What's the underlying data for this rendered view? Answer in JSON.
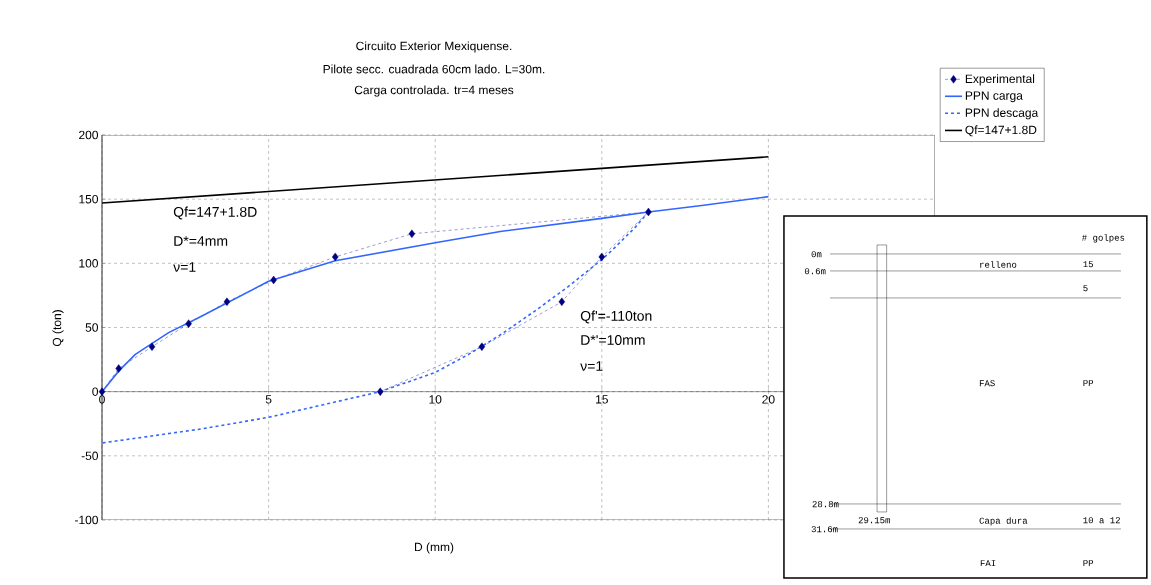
{
  "chart_data": {
    "type": "line",
    "title": "Circuito Exterior Mexiquense.",
    "subtitle": "Pilote secc. cuadrada 60cm lado. L=30m.",
    "xlabel": "D (mm)",
    "ylabel": "Q (ton)",
    "xlim": [
      0,
      25
    ],
    "xticks": [
      0,
      5,
      10,
      15,
      20
    ],
    "ylim": [
      -100,
      200
    ],
    "yticks": [
      -100,
      -50,
      0,
      50,
      100,
      150,
      200
    ],
    "grid": true,
    "legend": "top right",
    "series": [
      {
        "name": "Experimental",
        "color": "#000080",
        "marker": "diamond",
        "line_style": "dashed",
        "x": [
          0,
          0.5,
          1.5,
          2.6,
          3.75,
          5.15,
          7,
          9.3,
          16.4,
          15,
          13.8,
          11.4,
          8.35
        ],
        "values": [
          0,
          18,
          35,
          53,
          70,
          87,
          105,
          123,
          140,
          105,
          70,
          35,
          0
        ]
      },
      {
        "name": "PPN carga",
        "color": "#3366ff",
        "marker": "none",
        "line_style": "solid",
        "x": [
          0,
          0.5,
          1,
          2,
          3,
          5,
          7,
          10,
          12,
          15,
          16.4,
          18,
          20
        ],
        "values": [
          0,
          16,
          29,
          46,
          59,
          86,
          102,
          116,
          125,
          135,
          140,
          145,
          152
        ]
      },
      {
        "name": "PPN descaga",
        "color": "#3366ff",
        "marker": "none",
        "line_style": "dashed",
        "x": [
          16.4,
          16,
          15.3,
          15,
          14,
          13,
          12,
          11,
          10,
          8.35,
          6,
          5,
          3,
          0
        ],
        "values": [
          140,
          128,
          110,
          103,
          82,
          63,
          45,
          29,
          15,
          0,
          -14,
          -20,
          -29,
          -40
        ]
      },
      {
        "name": "Qf=147+1.8D",
        "color": "#000000",
        "marker": "none",
        "line_style": "solid",
        "x": [
          0,
          20
        ],
        "values": [
          147,
          183
        ]
      }
    ],
    "annotations": [
      "Carga controlada. tr=4 meses",
      "Qf=147+1.8D",
      "D*=4mm",
      "ν=1",
      "Qf'=-110ton",
      "D*'=10mm",
      "ν=1",
      "# golpes",
      "0m",
      "0.6m",
      "relleno",
      "15",
      "5",
      "FAS",
      "PP",
      "28.8m",
      "29.15m",
      "Capa dura",
      "10 a 12",
      "31.6m",
      "FAI",
      "PP"
    ]
  }
}
